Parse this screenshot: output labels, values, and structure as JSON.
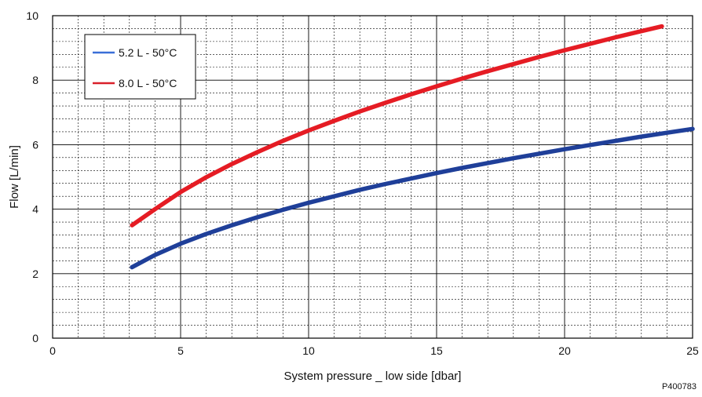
{
  "reference": "P400783",
  "chart_data": {
    "type": "line",
    "xlabel": "System pressure _ low side [dbar]",
    "ylabel": "Flow  [L/min]",
    "xlim": [
      0,
      25
    ],
    "ylim": [
      0,
      10
    ],
    "x_ticks": [
      "0",
      "5",
      "10",
      "15",
      "20",
      "25"
    ],
    "y_ticks": [
      "0",
      "2",
      "4",
      "6",
      "8",
      "10"
    ],
    "grid": true,
    "legend_position": "top-left",
    "series": [
      {
        "name": "5.2 L - 50°C",
        "color": "#3a6fd8",
        "line_color": "#1f3f99",
        "x": [
          3.1,
          4,
          5,
          6,
          7,
          8,
          9,
          10,
          11,
          12,
          13,
          14,
          15,
          16,
          17,
          18,
          19,
          20,
          21,
          22,
          23,
          24,
          25
        ],
        "y": [
          2.2,
          2.58,
          2.93,
          3.23,
          3.5,
          3.75,
          3.98,
          4.2,
          4.4,
          4.6,
          4.78,
          4.95,
          5.12,
          5.28,
          5.43,
          5.58,
          5.72,
          5.86,
          5.99,
          6.12,
          6.25,
          6.37,
          6.49
        ]
      },
      {
        "name": "8.0 L - 50°C",
        "color": "#d9202a",
        "line_color": "#e51c24",
        "x": [
          3.1,
          4,
          5,
          6,
          7,
          8,
          9,
          10,
          11,
          12,
          13,
          14,
          15,
          16,
          17,
          18,
          19,
          20,
          21,
          22,
          23,
          23.8
        ],
        "y": [
          3.5,
          4.0,
          4.53,
          4.99,
          5.4,
          5.77,
          6.12,
          6.44,
          6.74,
          7.03,
          7.3,
          7.56,
          7.81,
          8.05,
          8.28,
          8.5,
          8.72,
          8.93,
          9.13,
          9.33,
          9.52,
          9.67
        ]
      }
    ]
  }
}
